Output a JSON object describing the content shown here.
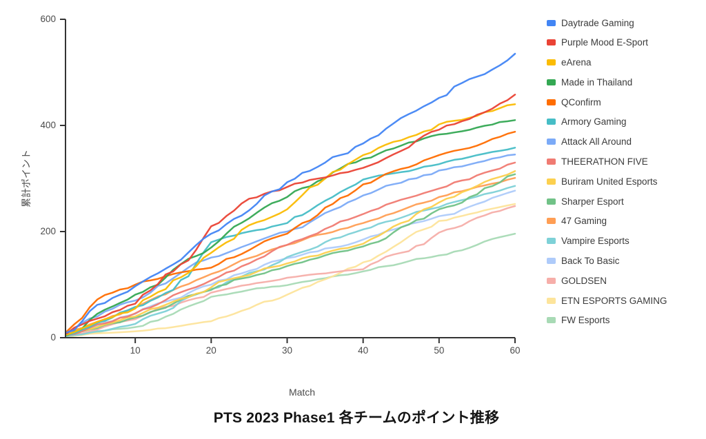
{
  "title": "PTS 2023 Phase1 各チームのポイント推移",
  "axes": {
    "x_label": "Match",
    "y_label": "累計ポイント",
    "x_ticks": [
      10,
      20,
      30,
      40,
      50,
      60
    ],
    "y_ticks": [
      0,
      200,
      400,
      600
    ],
    "x_range": [
      1,
      60
    ],
    "y_range": [
      0,
      600
    ]
  },
  "chart_data": {
    "type": "line",
    "title": "PTS 2023 Phase1 各チームのポイント推移",
    "xlabel": "Match",
    "ylabel": "累計ポイント",
    "xlim": [
      1,
      60
    ],
    "ylim": [
      0,
      600
    ],
    "grid": false,
    "legend_position": "right",
    "sample_matches": [
      1,
      5,
      10,
      15,
      20,
      25,
      30,
      35,
      40,
      45,
      50,
      55,
      60
    ],
    "series": [
      {
        "name": "Daytrade Gaming",
        "color": "#4285F4",
        "values": [
          10,
          62,
          97,
          138,
          196,
          240,
          293,
          330,
          366,
          414,
          452,
          492,
          535
        ]
      },
      {
        "name": "Purple Mood E-Sport",
        "color": "#EA4335",
        "values": [
          8,
          36,
          64,
          125,
          210,
          262,
          284,
          302,
          320,
          352,
          392,
          420,
          458
        ]
      },
      {
        "name": "eArena",
        "color": "#FBBC04",
        "values": [
          6,
          30,
          55,
          108,
          160,
          212,
          242,
          300,
          344,
          372,
          402,
          418,
          440
        ]
      },
      {
        "name": "Made in Thailand",
        "color": "#34A853",
        "values": [
          5,
          45,
          81,
          128,
          170,
          225,
          265,
          300,
          337,
          362,
          383,
          396,
          410
        ]
      },
      {
        "name": "QConfirm",
        "color": "#FF6D01",
        "values": [
          12,
          72,
          100,
          120,
          132,
          165,
          196,
          245,
          289,
          318,
          344,
          362,
          388
        ]
      },
      {
        "name": "Armory Gaming",
        "color": "#46BDC6",
        "values": [
          5,
          28,
          58,
          90,
          180,
          200,
          216,
          258,
          298,
          312,
          327,
          344,
          358
        ]
      },
      {
        "name": "Attack All Around",
        "color": "#7BAAF7",
        "values": [
          8,
          40,
          70,
          112,
          151,
          176,
          200,
          235,
          268,
          292,
          315,
          330,
          345
        ]
      },
      {
        "name": "THEERATHON FIVE",
        "color": "#F07B72",
        "values": [
          5,
          25,
          46,
          80,
          108,
          140,
          175,
          205,
          233,
          260,
          281,
          306,
          330
        ]
      },
      {
        "name": "Buriram United Esports",
        "color": "#FCD04F",
        "values": [
          5,
          20,
          40,
          68,
          95,
          118,
          140,
          160,
          177,
          216,
          255,
          286,
          314
        ]
      },
      {
        "name": "Sharper Esport",
        "color": "#71C287",
        "values": [
          4,
          18,
          38,
          64,
          90,
          114,
          135,
          155,
          172,
          208,
          242,
          270,
          308
        ]
      },
      {
        "name": "47 Gaming",
        "color": "#FF9E54",
        "values": [
          6,
          30,
          56,
          90,
          120,
          150,
          175,
          196,
          216,
          240,
          265,
          284,
          301
        ]
      },
      {
        "name": "Vampire Esports",
        "color": "#7ED1D7",
        "values": [
          3,
          12,
          26,
          56,
          92,
          122,
          152,
          180,
          204,
          226,
          246,
          266,
          286
        ]
      },
      {
        "name": "Back To Basic",
        "color": "#AECBFA",
        "values": [
          5,
          22,
          45,
          72,
          100,
          126,
          150,
          168,
          185,
          208,
          229,
          252,
          277
        ]
      },
      {
        "name": "GOLDSEN",
        "color": "#F6AEA9",
        "values": [
          4,
          15,
          35,
          60,
          85,
          100,
          113,
          121,
          129,
          160,
          198,
          226,
          248
        ]
      },
      {
        "name": "ETN ESPORTS GAMING",
        "color": "#FDE49B",
        "values": [
          2,
          8,
          12,
          20,
          31,
          55,
          81,
          110,
          142,
          180,
          220,
          236,
          252
        ]
      },
      {
        "name": "FW Esports",
        "color": "#A8DAB5",
        "values": [
          2,
          10,
          20,
          45,
          77,
          90,
          99,
          112,
          125,
          140,
          155,
          175,
          196
        ]
      }
    ]
  },
  "style": {
    "axis_color": "#333333",
    "tick_color": "#4b4b4b",
    "background": "#ffffff"
  }
}
